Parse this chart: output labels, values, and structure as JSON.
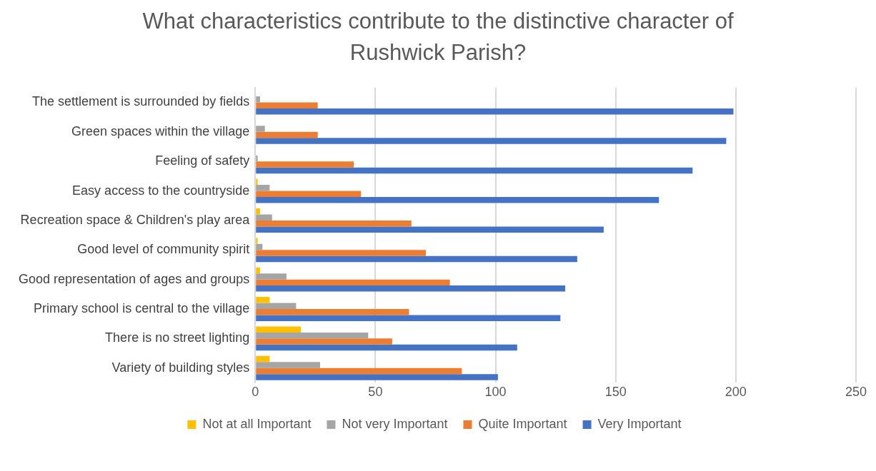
{
  "chart_data": {
    "type": "bar",
    "orientation": "horizontal",
    "title": "What characteristics contribute to the distinctive character of Rushwick Parish?",
    "categories": [
      "The settlement is surrounded by fields",
      "Green spaces within the village",
      "Feeling of safety",
      "Easy access to the countryside",
      "Recreation space & Children's play area",
      "Good level of community spirit",
      "Good representation of ages and groups",
      "Primary school is central to the village",
      "There is no street lighting",
      "Variety of building styles"
    ],
    "series": [
      {
        "name": "Not at all Important",
        "color": "#ffc000",
        "values": [
          0,
          0,
          0,
          1,
          2,
          1,
          2,
          6,
          19,
          6
        ]
      },
      {
        "name": "Not very Important",
        "color": "#a5a5a5",
        "values": [
          2,
          4,
          1,
          6,
          7,
          3,
          13,
          17,
          47,
          27
        ]
      },
      {
        "name": "Quite Important",
        "color": "#ed7d31",
        "values": [
          26,
          26,
          41,
          44,
          65,
          71,
          81,
          64,
          57,
          86
        ]
      },
      {
        "name": "Very Important",
        "color": "#4472c4",
        "values": [
          199,
          196,
          182,
          168,
          145,
          134,
          129,
          127,
          109,
          101
        ]
      }
    ],
    "xlim": [
      0,
      250
    ],
    "xticks": [
      0,
      50,
      100,
      150,
      200,
      250
    ],
    "grid": "x",
    "legend": "bottom"
  }
}
